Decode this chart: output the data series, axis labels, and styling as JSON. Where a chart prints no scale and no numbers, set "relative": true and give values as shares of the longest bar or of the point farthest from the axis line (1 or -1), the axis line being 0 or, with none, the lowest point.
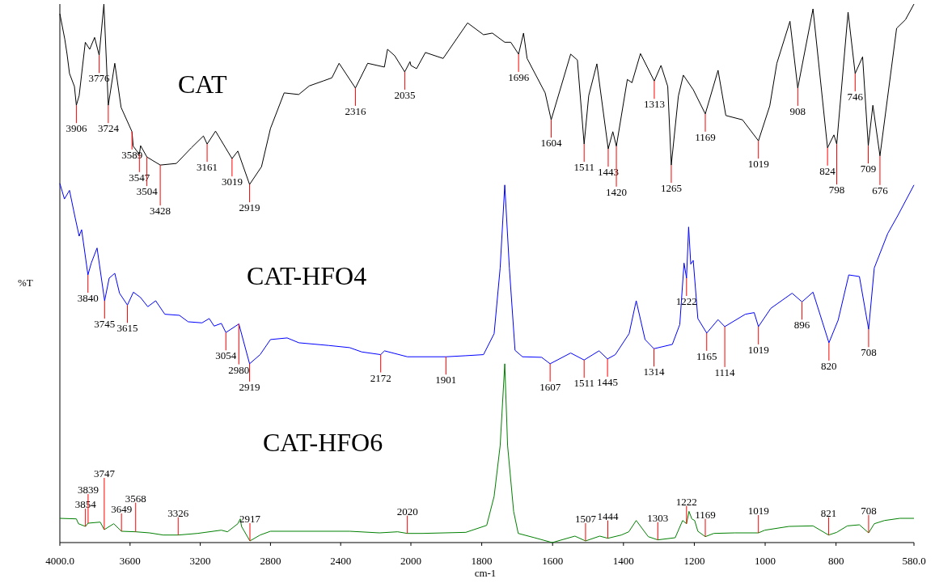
{
  "chart_data": [
    {
      "type": "line",
      "relative": true,
      "ylabel": "%T",
      "legend": false,
      "grid": false,
      "xlim": [
        4000,
        2000
      ],
      "xticks": [
        {
          "value": 4000,
          "label": "4000.0"
        },
        3600,
        3200,
        2800,
        2400,
        2000
      ],
      "series": [
        {
          "name": "CAT",
          "color": "#000000",
          "x": [
            4000,
            3972,
            3959,
            3945,
            3917,
            3906,
            3890,
            3855,
            3830,
            3802,
            3776,
            3749,
            3724,
            3687,
            3651,
            3589,
            3582,
            3547,
            3540,
            3504,
            3428,
            3336,
            3251,
            3182,
            3161,
            3113,
            3019,
            2986,
            2919,
            2851,
            2800,
            2722,
            2639,
            2579,
            2501,
            2450,
            2409,
            2316,
            2246,
            2151,
            2133,
            2092,
            2035,
            2005,
            2000
          ],
          "values": [
            0.982,
            0.935,
            0.907,
            0.871,
            0.847,
            0.812,
            0.83,
            0.929,
            0.916,
            0.938,
            0.905,
            1,
            0.812,
            0.89,
            0.808,
            0.763,
            0.736,
            0.721,
            0.737,
            0.716,
            0.701,
            0.704,
            0.733,
            0.755,
            0.74,
            0.764,
            0.713,
            0.727,
            0.665,
            0.698,
            0.769,
            0.835,
            0.832,
            0.848,
            0.857,
            0.863,
            0.89,
            0.844,
            0.89,
            0.883,
            0.916,
            0.904,
            0.874,
            0.893,
            0.886
          ]
        },
        {
          "name": "CAT-HFO4",
          "color": "#0000ff",
          "x": [
            4000,
            3974,
            3945,
            3914,
            3890,
            3876,
            3840,
            3821,
            3788,
            3745,
            3719,
            3687,
            3660,
            3615,
            3581,
            3540,
            3499,
            3454,
            3402,
            3319,
            3269,
            3190,
            3149,
            3121,
            3080,
            3054,
            2980,
            2919,
            2859,
            2800,
            2705,
            2638,
            2468,
            2349,
            2280,
            2172,
            2150,
            2020,
            2000
          ],
          "values": [
            0.667,
            0.638,
            0.654,
            0.605,
            0.569,
            0.581,
            0.497,
            0.519,
            0.547,
            0.449,
            0.491,
            0.5,
            0.463,
            0.441,
            0.465,
            0.455,
            0.438,
            0.449,
            0.424,
            0.422,
            0.41,
            0.408,
            0.416,
            0.402,
            0.407,
            0.39,
            0.406,
            0.332,
            0.349,
            0.377,
            0.38,
            0.371,
            0.366,
            0.362,
            0.354,
            0.349,
            0.356,
            0.345,
            0.345
          ]
        },
        {
          "name": "CAT-HFO6",
          "color": "#008000",
          "x": [
            4000,
            3906,
            3894,
            3854,
            3839,
            3770,
            3747,
            3693,
            3649,
            3568,
            3489,
            3411,
            3326,
            3216,
            3080,
            3045,
            2986,
            2972,
            2965,
            2917,
            2859,
            2800,
            2349,
            2179,
            2075,
            2020,
            2000
          ],
          "values": [
            0.045,
            0.044,
            0.035,
            0.03,
            0.036,
            0.038,
            0.024,
            0.035,
            0.021,
            0.02,
            0.018,
            0.014,
            0.014,
            0.017,
            0.023,
            0.02,
            0.035,
            0.044,
            0.03,
            0.003,
            0.014,
            0.021,
            0.021,
            0.018,
            0.02,
            0.017,
            0.017
          ]
        }
      ],
      "annotations": [
        {
          "text": "3906",
          "x": 3906,
          "y": 0.812
        },
        {
          "text": "3776",
          "x": 3776,
          "y": 0.905
        },
        {
          "text": "3724",
          "x": 3724,
          "y": 0.812
        },
        {
          "text": "3589",
          "x": 3589,
          "y": 0.763
        },
        {
          "text": "3547",
          "x": 3547,
          "y": 0.721
        },
        {
          "text": "3504",
          "x": 3504,
          "y": 0.716
        },
        {
          "text": "3428",
          "x": 3428,
          "y": 0.701
        },
        {
          "text": "3161",
          "x": 3161,
          "y": 0.74
        },
        {
          "text": "3019",
          "x": 3019,
          "y": 0.713
        },
        {
          "text": "2919",
          "x": 2919,
          "y": 0.665
        },
        {
          "text": "2316",
          "x": 2316,
          "y": 0.844
        },
        {
          "text": "2035",
          "x": 2035,
          "y": 0.874
        },
        {
          "text": "3840",
          "x": 3840,
          "y": 0.497
        },
        {
          "text": "3745",
          "x": 3745,
          "y": 0.449
        },
        {
          "text": "3615",
          "x": 3615,
          "y": 0.441
        },
        {
          "text": "3054",
          "x": 3054,
          "y": 0.39
        },
        {
          "text": "2980",
          "x": 2980,
          "y": 0.406
        },
        {
          "text": "2919",
          "x": 2919,
          "y": 0.332
        },
        {
          "text": "2172",
          "x": 2172,
          "y": 0.349
        },
        {
          "text": "3854",
          "x": 3854,
          "y": 0.03
        },
        {
          "text": "3839",
          "x": 3839,
          "y": 0.036
        },
        {
          "text": "3747",
          "x": 3747,
          "y": 0.024
        },
        {
          "text": "3649",
          "x": 3649,
          "y": 0.021
        },
        {
          "text": "3568",
          "x": 3568,
          "y": 0.02
        },
        {
          "text": "3326",
          "x": 3326,
          "y": 0.014
        },
        {
          "text": "2917",
          "x": 2917,
          "y": 0.003
        },
        {
          "text": "2020",
          "x": 2020,
          "y": 0.017
        }
      ]
    },
    {
      "type": "line",
      "relative": true,
      "xlabel": "cm-1",
      "legend": false,
      "grid": false,
      "xlim": [
        2000,
        580
      ],
      "xticks": [
        1800,
        1600,
        1400,
        1200,
        1000,
        800,
        {
          "value": 580,
          "label": "580.0"
        }
      ],
      "series": [
        {
          "color": "#000000",
          "x": [
            2000,
            1984,
            1959,
            1909,
            1840,
            1795,
            1770,
            1735,
            1718,
            1696,
            1682,
            1672,
            1621,
            1604,
            1549,
            1530,
            1511,
            1498,
            1475,
            1443,
            1430,
            1420,
            1389,
            1376,
            1352,
            1313,
            1294,
            1275,
            1265,
            1245,
            1231,
            1203,
            1169,
            1133,
            1111,
            1064,
            1019,
            987,
            967,
            930,
            908,
            865,
            824,
            806,
            798,
            766,
            746,
            725,
            709,
            696,
            676,
            629,
            604,
            580
          ],
          "values": [
            0.886,
            0.88,
            0.91,
            0.899,
            0.965,
            0.943,
            0.946,
            0.929,
            0.929,
            0.907,
            0.946,
            0.899,
            0.835,
            0.785,
            0.907,
            0.896,
            0.74,
            0.83,
            0.889,
            0.731,
            0.763,
            0.736,
            0.86,
            0.854,
            0.908,
            0.857,
            0.886,
            0.847,
            0.701,
            0.829,
            0.868,
            0.841,
            0.796,
            0.877,
            0.793,
            0.785,
            0.746,
            0.811,
            0.89,
            0.968,
            0.844,
            0.991,
            0.733,
            0.757,
            0.74,
            0.985,
            0.871,
            0.902,
            0.737,
            0.812,
            0.718,
            0.955,
            0.971,
            1
          ]
        },
        {
          "color": "#0000ff",
          "x": [
            2000,
            1901,
            1845,
            1795,
            1765,
            1748,
            1735,
            1722,
            1706,
            1685,
            1631,
            1607,
            1549,
            1511,
            1469,
            1445,
            1423,
            1384,
            1364,
            1339,
            1314,
            1262,
            1241,
            1229,
            1222,
            1216,
            1210,
            1203,
            1190,
            1165,
            1133,
            1114,
            1056,
            1031,
            1019,
            984,
            924,
            896,
            865,
            820,
            794,
            764,
            734,
            708,
            692,
            654,
            625,
            580
          ],
          "values": [
            0.345,
            0.345,
            0.347,
            0.349,
            0.388,
            0.51,
            0.664,
            0.51,
            0.357,
            0.345,
            0.344,
            0.332,
            0.352,
            0.339,
            0.356,
            0.341,
            0.349,
            0.388,
            0.449,
            0.377,
            0.36,
            0.368,
            0.405,
            0.519,
            0.491,
            0.586,
            0.517,
            0.524,
            0.416,
            0.389,
            0.414,
            0.401,
            0.424,
            0.427,
            0.401,
            0.435,
            0.463,
            0.447,
            0.465,
            0.371,
            0.413,
            0.497,
            0.494,
            0.396,
            0.51,
            0.574,
            0.608,
            0.664
          ]
        },
        {
          "color": "#008000",
          "x": [
            2000,
            1968,
            1845,
            1786,
            1765,
            1748,
            1735,
            1727,
            1710,
            1697,
            1651,
            1601,
            1537,
            1507,
            1467,
            1444,
            1406,
            1385,
            1364,
            1330,
            1303,
            1254,
            1233,
            1222,
            1215,
            1207,
            1199,
            1190,
            1169,
            1145,
            1086,
            1019,
            1001,
            933,
            865,
            821,
            798,
            768,
            734,
            708,
            692,
            663,
            620,
            580
          ],
          "values": [
            0.017,
            0.017,
            0.019,
            0.032,
            0.086,
            0.18,
            0.332,
            0.18,
            0.058,
            0.017,
            0.009,
            0,
            0.012,
            0.003,
            0.012,
            0.008,
            0.014,
            0.02,
            0.041,
            0.011,
            0.005,
            0.009,
            0.041,
            0.035,
            0.058,
            0.044,
            0.041,
            0.021,
            0.011,
            0.017,
            0.018,
            0.018,
            0.023,
            0.03,
            0.031,
            0.014,
            0.019,
            0.031,
            0.033,
            0.018,
            0.035,
            0.041,
            0.045,
            0.045
          ]
        }
      ],
      "annotations": [
        {
          "text": "1696",
          "x": 1696,
          "y": 0.907
        },
        {
          "text": "1604",
          "x": 1604,
          "y": 0.785
        },
        {
          "text": "1511",
          "x": 1511,
          "y": 0.74
        },
        {
          "text": "1443",
          "x": 1443,
          "y": 0.731
        },
        {
          "text": "1420",
          "x": 1420,
          "y": 0.736
        },
        {
          "text": "1313",
          "x": 1313,
          "y": 0.857
        },
        {
          "text": "1265",
          "x": 1265,
          "y": 0.701
        },
        {
          "text": "1169",
          "x": 1169,
          "y": 0.796
        },
        {
          "text": "1019",
          "x": 1019,
          "y": 0.746
        },
        {
          "text": "908",
          "x": 908,
          "y": 0.844
        },
        {
          "text": "824",
          "x": 824,
          "y": 0.733
        },
        {
          "text": "798",
          "x": 798,
          "y": 0.74
        },
        {
          "text": "746",
          "x": 746,
          "y": 0.871
        },
        {
          "text": "709",
          "x": 709,
          "y": 0.737
        },
        {
          "text": "676",
          "x": 676,
          "y": 0.718
        },
        {
          "text": "1901",
          "x": 1901,
          "y": 0.345
        },
        {
          "text": "1607",
          "x": 1607,
          "y": 0.332
        },
        {
          "text": "1511",
          "x": 1511,
          "y": 0.339
        },
        {
          "text": "1445",
          "x": 1445,
          "y": 0.341
        },
        {
          "text": "1314",
          "x": 1314,
          "y": 0.36
        },
        {
          "text": "1222",
          "x": 1222,
          "y": 0.491
        },
        {
          "text": "1165",
          "x": 1165,
          "y": 0.389
        },
        {
          "text": "1114",
          "x": 1114,
          "y": 0.401
        },
        {
          "text": "1019",
          "x": 1019,
          "y": 0.401
        },
        {
          "text": "896",
          "x": 896,
          "y": 0.447
        },
        {
          "text": "820",
          "x": 820,
          "y": 0.371
        },
        {
          "text": "708",
          "x": 708,
          "y": 0.396
        },
        {
          "text": "1507",
          "x": 1507,
          "y": 0.003
        },
        {
          "text": "1444",
          "x": 1444,
          "y": 0.008
        },
        {
          "text": "1303",
          "x": 1303,
          "y": 0.005
        },
        {
          "text": "1222",
          "x": 1222,
          "y": 0.035
        },
        {
          "text": "1169",
          "x": 1169,
          "y": 0.011
        },
        {
          "text": "1019",
          "x": 1019,
          "y": 0.018
        },
        {
          "text": "821",
          "x": 821,
          "y": 0.014
        },
        {
          "text": "708",
          "x": 708,
          "y": 0.018
        }
      ]
    }
  ]
}
